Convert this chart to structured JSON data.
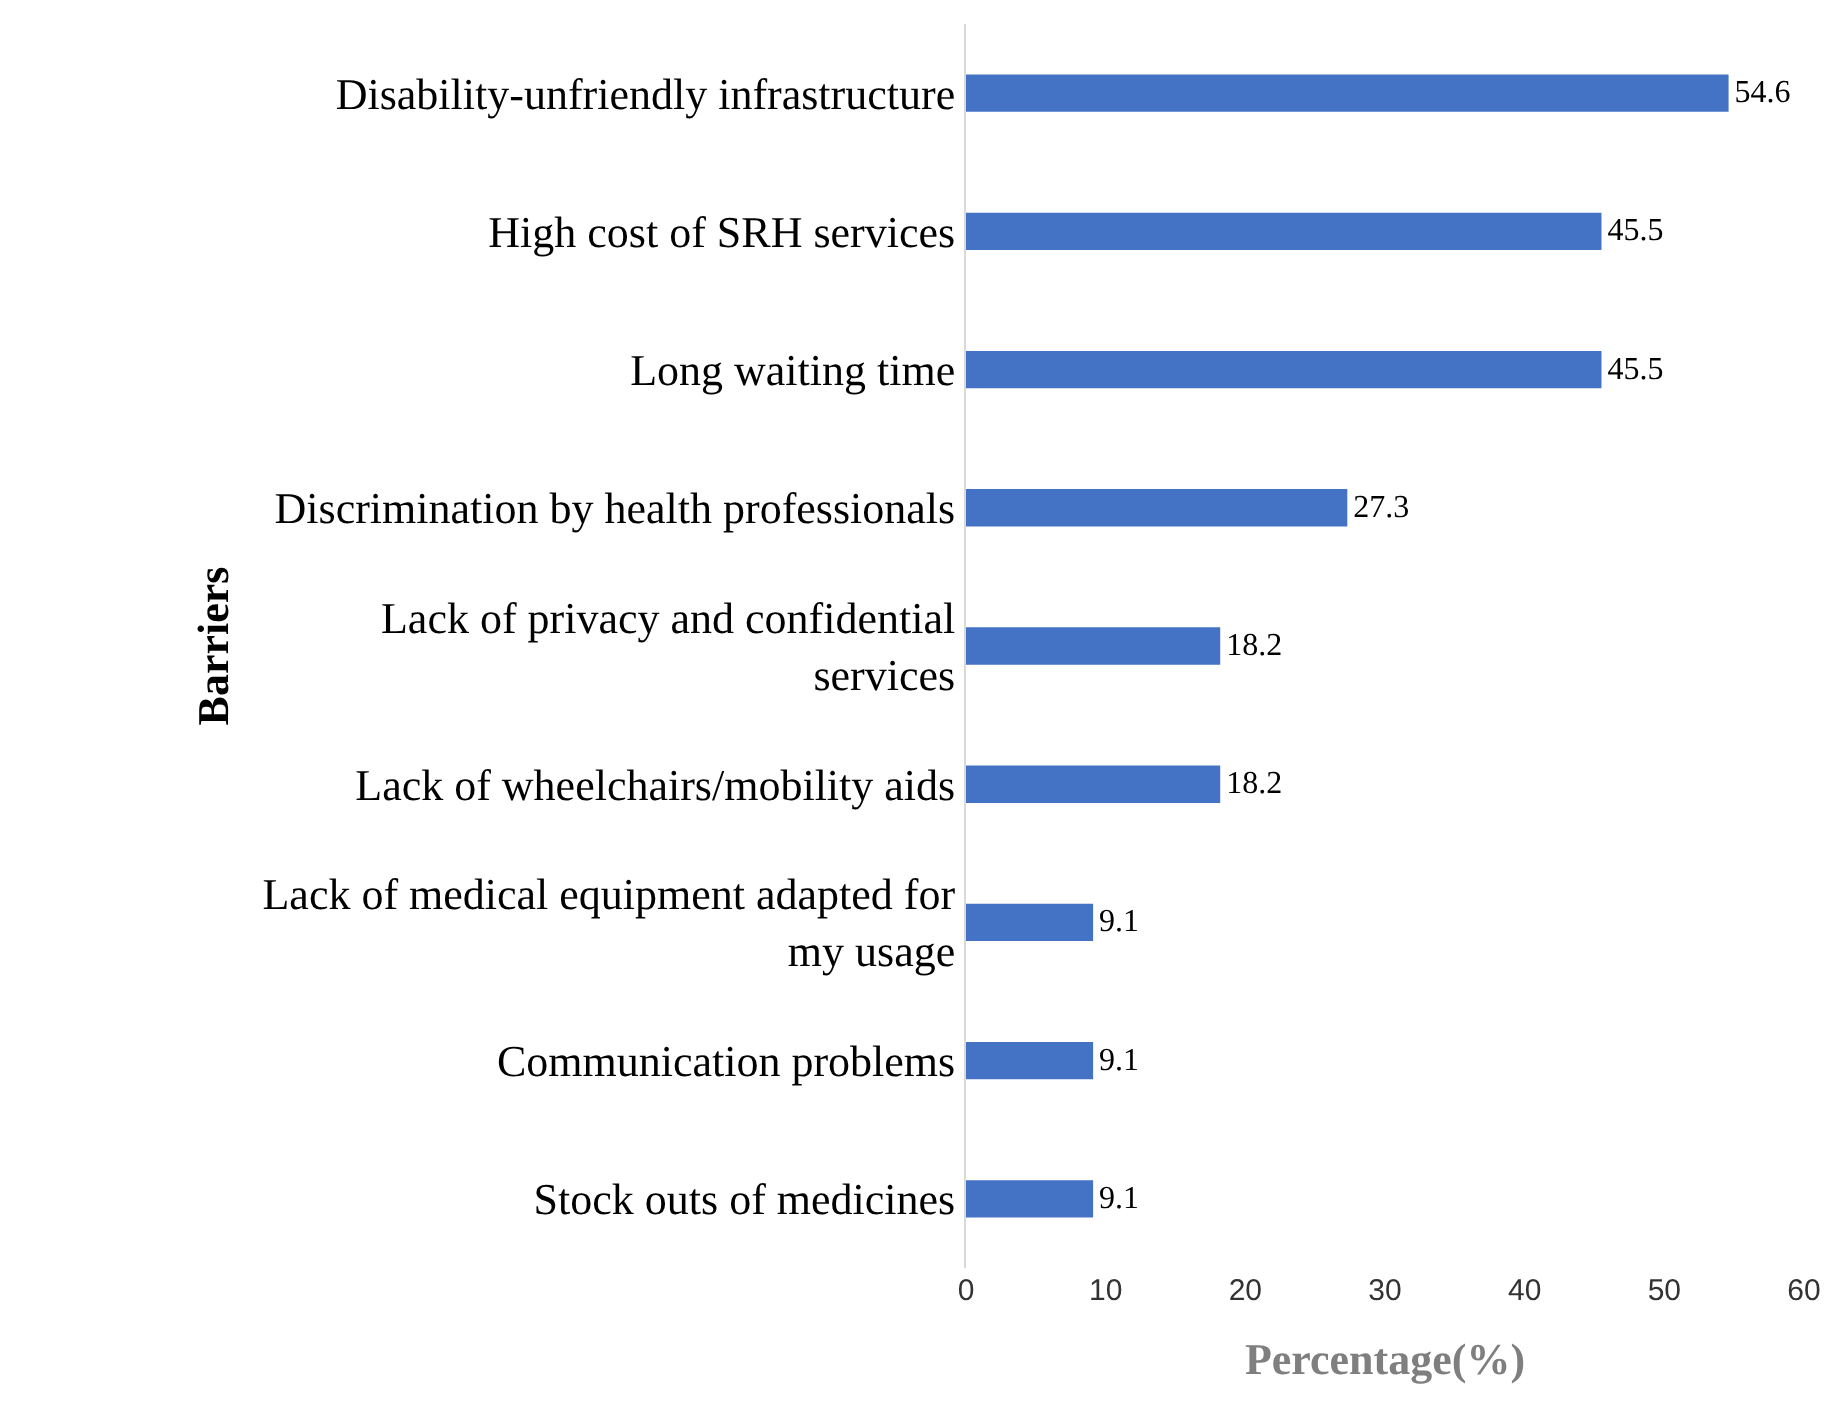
{
  "chart_data": {
    "type": "bar",
    "orientation": "horizontal",
    "xlabel": "Percentage(%)",
    "ylabel": "Barriers",
    "categories": [
      "Disability-unfriendly infrastructure",
      "High cost of SRH services",
      "Long waiting time",
      "Discrimination by health professionals",
      "Lack of privacy and confidential services",
      "Lack of wheelchairs/mobility aids",
      "Lack of medical equipment adapted for my usage",
      "Communication problems",
      "Stock outs of medicines"
    ],
    "values": [
      54.6,
      45.5,
      45.5,
      27.3,
      18.2,
      18.2,
      9.1,
      9.1,
      9.1
    ],
    "color": "#4472c4",
    "xlim": [
      0,
      60
    ],
    "xticks": [
      0,
      10,
      20,
      30,
      40,
      50,
      60
    ],
    "grid": false,
    "legend": false,
    "data_labels": true
  }
}
